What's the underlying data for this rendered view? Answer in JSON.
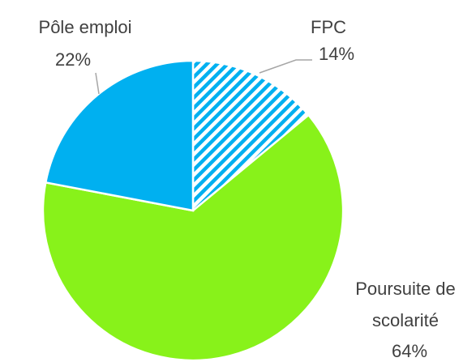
{
  "chart_data": {
    "type": "pie",
    "categories": [
      "FPC",
      "Poursuite de scolarité",
      "Pôle emploi"
    ],
    "values": [
      14,
      64,
      22
    ],
    "value_labels": [
      "14%",
      "64%",
      "22%"
    ],
    "colors": [
      "#00b0f0",
      "#88f21a",
      "#00b0f0"
    ],
    "hatched": [
      true,
      false,
      false
    ]
  }
}
